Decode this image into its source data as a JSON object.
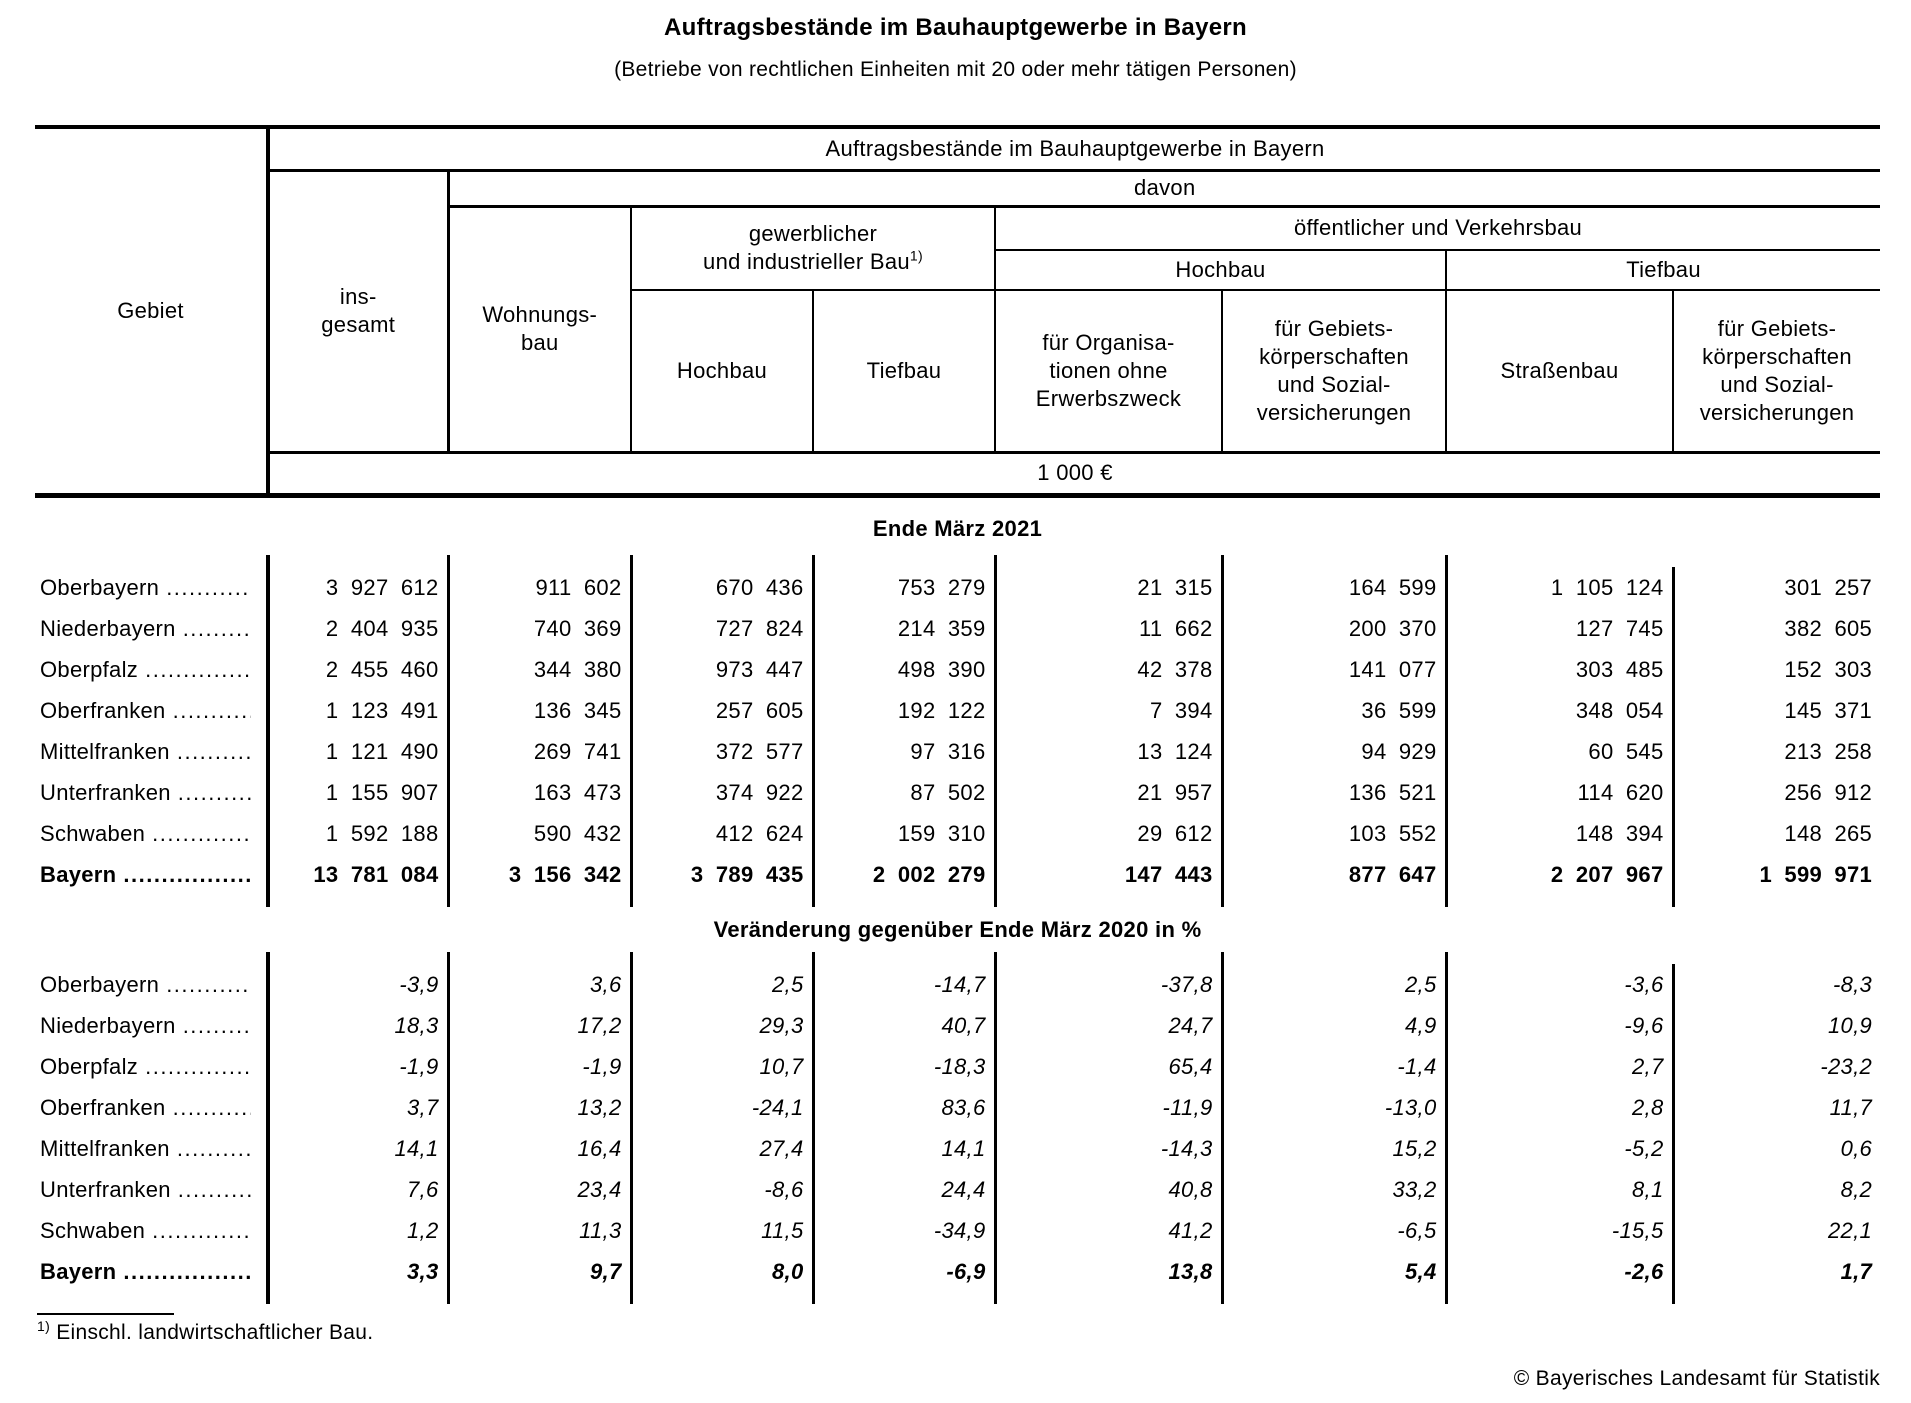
{
  "colors": {
    "text": "#000000",
    "background": "#ffffff"
  },
  "page": {
    "title": "Auftragsbestände im Bauhauptgewerbe in Bayern",
    "subtitle": "(Betriebe von rechtlichen Einheiten mit 20 oder mehr tätigen Personen)",
    "footnote": {
      "marker": "1)",
      "text": "Einschl. landwirtschaftlicher Bau."
    },
    "copyright": "© Bayerisches Landesamt für Statistik"
  },
  "table": {
    "header": {
      "gebiet": "Gebiet",
      "span_title": "Auftragsbestände im Bauhauptgewerbe in Bayern",
      "insgesamt": "ins-\ngesamt",
      "davon": "davon",
      "wohnungsbau": "Wohnungs-\nbau",
      "gew_bau": "gewerblicher\nund industrieller Bau",
      "gew_bau_footnote_marker": "1)",
      "oeff_bau": "öffentlicher und Verkehrsbau",
      "hochbau_gew": "Hochbau",
      "tiefbau_gew": "Tiefbau",
      "hochbau_oeff": "Hochbau",
      "tiefbau_oeff": "Tiefbau",
      "fuer_org": "für Organisa-\ntionen ohne\nErwerbszweck",
      "fuer_gebiet_hoch": "für Gebiets-\nkörperschaften\nund Sozial-\nversicherungen",
      "strassenbau": "Straßenbau",
      "fuer_gebiet_tief": "für Gebiets-\nkörperschaften\nund Sozial-\nversicherungen",
      "unit": "1 000 €"
    },
    "sections": [
      {
        "title": "Ende März 2021",
        "italic": false,
        "rows": [
          {
            "label": "Oberbayern",
            "emphasis": false,
            "values": [
              "3 927 612",
              "911 602",
              "670 436",
              "753 279",
              "21 315",
              "164 599",
              "1 105 124",
              "301 257"
            ]
          },
          {
            "label": "Niederbayern",
            "emphasis": false,
            "values": [
              "2 404 935",
              "740 369",
              "727 824",
              "214 359",
              "11 662",
              "200 370",
              "127 745",
              "382 605"
            ]
          },
          {
            "label": "Oberpfalz",
            "emphasis": false,
            "values": [
              "2 455 460",
              "344 380",
              "973 447",
              "498 390",
              "42 378",
              "141 077",
              "303 485",
              "152 303"
            ]
          },
          {
            "label": "Oberfranken",
            "emphasis": false,
            "values": [
              "1 123 491",
              "136 345",
              "257 605",
              "192 122",
              "7 394",
              "36 599",
              "348 054",
              "145 371"
            ]
          },
          {
            "label": "Mittelfranken",
            "emphasis": false,
            "values": [
              "1 121 490",
              "269 741",
              "372 577",
              "97 316",
              "13 124",
              "94 929",
              "60 545",
              "213 258"
            ]
          },
          {
            "label": "Unterfranken",
            "emphasis": false,
            "values": [
              "1 155 907",
              "163 473",
              "374 922",
              "87 502",
              "21 957",
              "136 521",
              "114 620",
              "256 912"
            ]
          },
          {
            "label": "Schwaben",
            "emphasis": false,
            "values": [
              "1 592 188",
              "590 432",
              "412 624",
              "159 310",
              "29 612",
              "103 552",
              "148 394",
              "148 265"
            ]
          },
          {
            "label": "Bayern",
            "emphasis": true,
            "values": [
              "13 781 084",
              "3 156 342",
              "3 789 435",
              "2 002 279",
              "147 443",
              "877 647",
              "2 207 967",
              "1 599 971"
            ]
          }
        ]
      },
      {
        "title": "Veränderung gegenüber Ende März 2020 in %",
        "italic": true,
        "rows": [
          {
            "label": "Oberbayern",
            "emphasis": false,
            "values": [
              "-3,9",
              "3,6",
              "2,5",
              "-14,7",
              "-37,8",
              "2,5",
              "-3,6",
              "-8,3"
            ]
          },
          {
            "label": "Niederbayern",
            "emphasis": false,
            "values": [
              "18,3",
              "17,2",
              "29,3",
              "40,7",
              "24,7",
              "4,9",
              "-9,6",
              "10,9"
            ]
          },
          {
            "label": "Oberpfalz",
            "emphasis": false,
            "values": [
              "-1,9",
              "-1,9",
              "10,7",
              "-18,3",
              "65,4",
              "-1,4",
              "2,7",
              "-23,2"
            ]
          },
          {
            "label": "Oberfranken",
            "emphasis": false,
            "values": [
              "3,7",
              "13,2",
              "-24,1",
              "83,6",
              "-11,9",
              "-13,0",
              "2,8",
              "11,7"
            ]
          },
          {
            "label": "Mittelfranken",
            "emphasis": false,
            "values": [
              "14,1",
              "16,4",
              "27,4",
              "14,1",
              "-14,3",
              "15,2",
              "-5,2",
              "0,6"
            ]
          },
          {
            "label": "Unterfranken",
            "emphasis": false,
            "values": [
              "7,6",
              "23,4",
              "-8,6",
              "24,4",
              "40,8",
              "33,2",
              "8,1",
              "8,2"
            ]
          },
          {
            "label": "Schwaben",
            "emphasis": false,
            "values": [
              "1,2",
              "11,3",
              "11,5",
              "-34,9",
              "41,2",
              "-6,5",
              "-15,5",
              "22,1"
            ]
          },
          {
            "label": "Bayern",
            "emphasis": true,
            "values": [
              "3,3",
              "9,7",
              "8,0",
              "-6,9",
              "13,8",
              "5,4",
              "-2,6",
              "1,7"
            ]
          }
        ]
      }
    ]
  }
}
